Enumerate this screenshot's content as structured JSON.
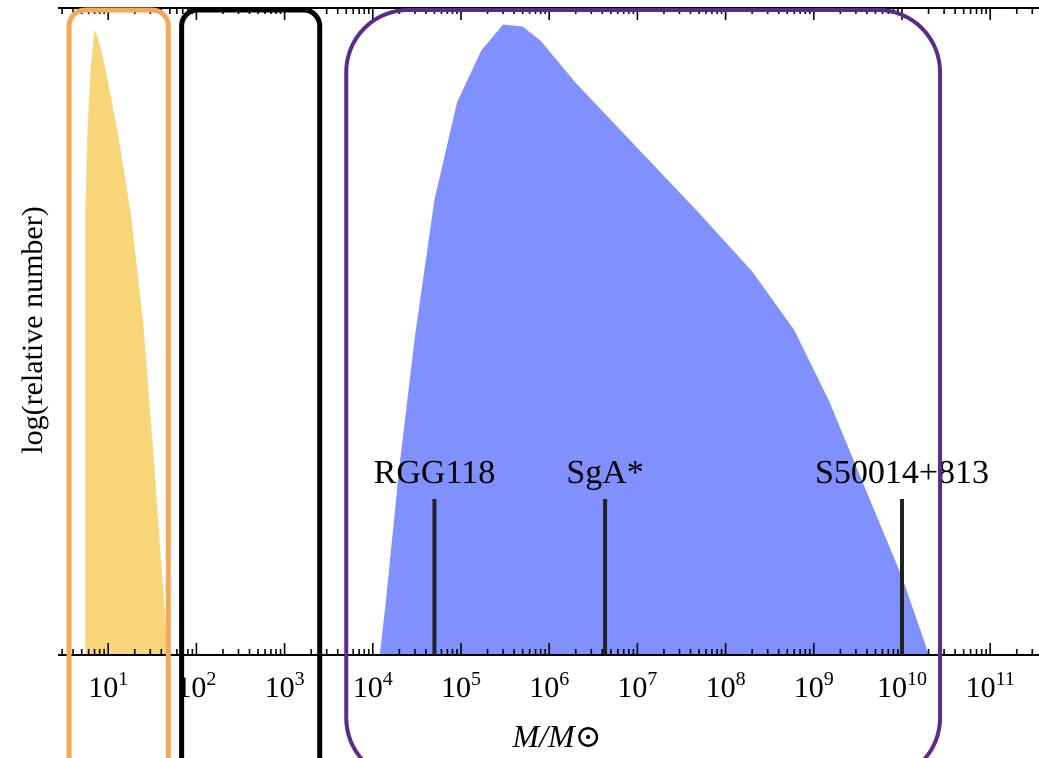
{
  "chart_data": {
    "type": "area",
    "title": "",
    "xlabel": "M/M⊙",
    "ylabel": "log(relative number)",
    "x_scale": "log",
    "xlim": [
      3.5,
      13000000000
    ],
    "y_scale": "log-relative (unitless, no tick labels)",
    "ylim": [
      0,
      1
    ],
    "grid": false,
    "legend": "none",
    "x_ticks": [
      {
        "value": 10,
        "base": "10",
        "exp": "1"
      },
      {
        "value": 100,
        "base": "10",
        "exp": "2"
      },
      {
        "value": 1000,
        "base": "10",
        "exp": "3"
      },
      {
        "value": 10000,
        "base": "10",
        "exp": "4"
      },
      {
        "value": 100000,
        "base": "10",
        "exp": "5"
      },
      {
        "value": 1000000,
        "base": "10",
        "exp": "6"
      },
      {
        "value": 10000000,
        "base": "10",
        "exp": "7"
      },
      {
        "value": 100000000,
        "base": "10",
        "exp": "8"
      },
      {
        "value": 1000000000,
        "base": "10",
        "exp": "9"
      },
      {
        "value": 10000000000,
        "base": "10",
        "exp": "10"
      },
      {
        "value": 100000000000,
        "base": "10",
        "exp": "11"
      }
    ],
    "series": [
      {
        "color": "#f9d57a",
        "points": [
          [
            5.5,
            0.0
          ],
          [
            5.5,
            0.68
          ],
          [
            5.8,
            0.8
          ],
          [
            6.3,
            0.9
          ],
          [
            7.0,
            0.963
          ],
          [
            7.6,
            0.95
          ],
          [
            8.7,
            0.92
          ],
          [
            10,
            0.88
          ],
          [
            13,
            0.8
          ],
          [
            18,
            0.68
          ],
          [
            25,
            0.51
          ],
          [
            33,
            0.3
          ],
          [
            40,
            0.14
          ],
          [
            45,
            0.05
          ],
          [
            48,
            0.0
          ]
        ]
      },
      {
        "color": "#8090ff",
        "points": [
          [
            12000,
            0.0
          ],
          [
            14000,
            0.08
          ],
          [
            20000,
            0.29
          ],
          [
            30000,
            0.49
          ],
          [
            50000,
            0.7
          ],
          [
            90000,
            0.85
          ],
          [
            170000,
            0.93
          ],
          [
            300000,
            0.97
          ],
          [
            500000,
            0.967
          ],
          [
            800000,
            0.945
          ],
          [
            2000000,
            0.88
          ],
          [
            10000000,
            0.78
          ],
          [
            50000000,
            0.68
          ],
          [
            200000000,
            0.59
          ],
          [
            600000000,
            0.5
          ],
          [
            1500000000,
            0.39
          ],
          [
            4000000000,
            0.25
          ],
          [
            10000000000,
            0.12
          ],
          [
            18000000000,
            0.02
          ],
          [
            20000000000,
            0.0
          ]
        ]
      }
    ],
    "markers": [
      {
        "label": "RGG118",
        "value": 50000
      },
      {
        "label": "SgA*",
        "value": 4300000
      },
      {
        "label": "S50014+813",
        "value": 10000000000
      }
    ],
    "regions": [
      {
        "color": "#f4a95a",
        "xmin": 3.6,
        "xmax": 48
      },
      {
        "color": "#000000",
        "xmin": 68,
        "xmax": 2500
      },
      {
        "color": "#5a2a8c",
        "xmin": 5000,
        "xmax": 27000000000
      }
    ]
  }
}
